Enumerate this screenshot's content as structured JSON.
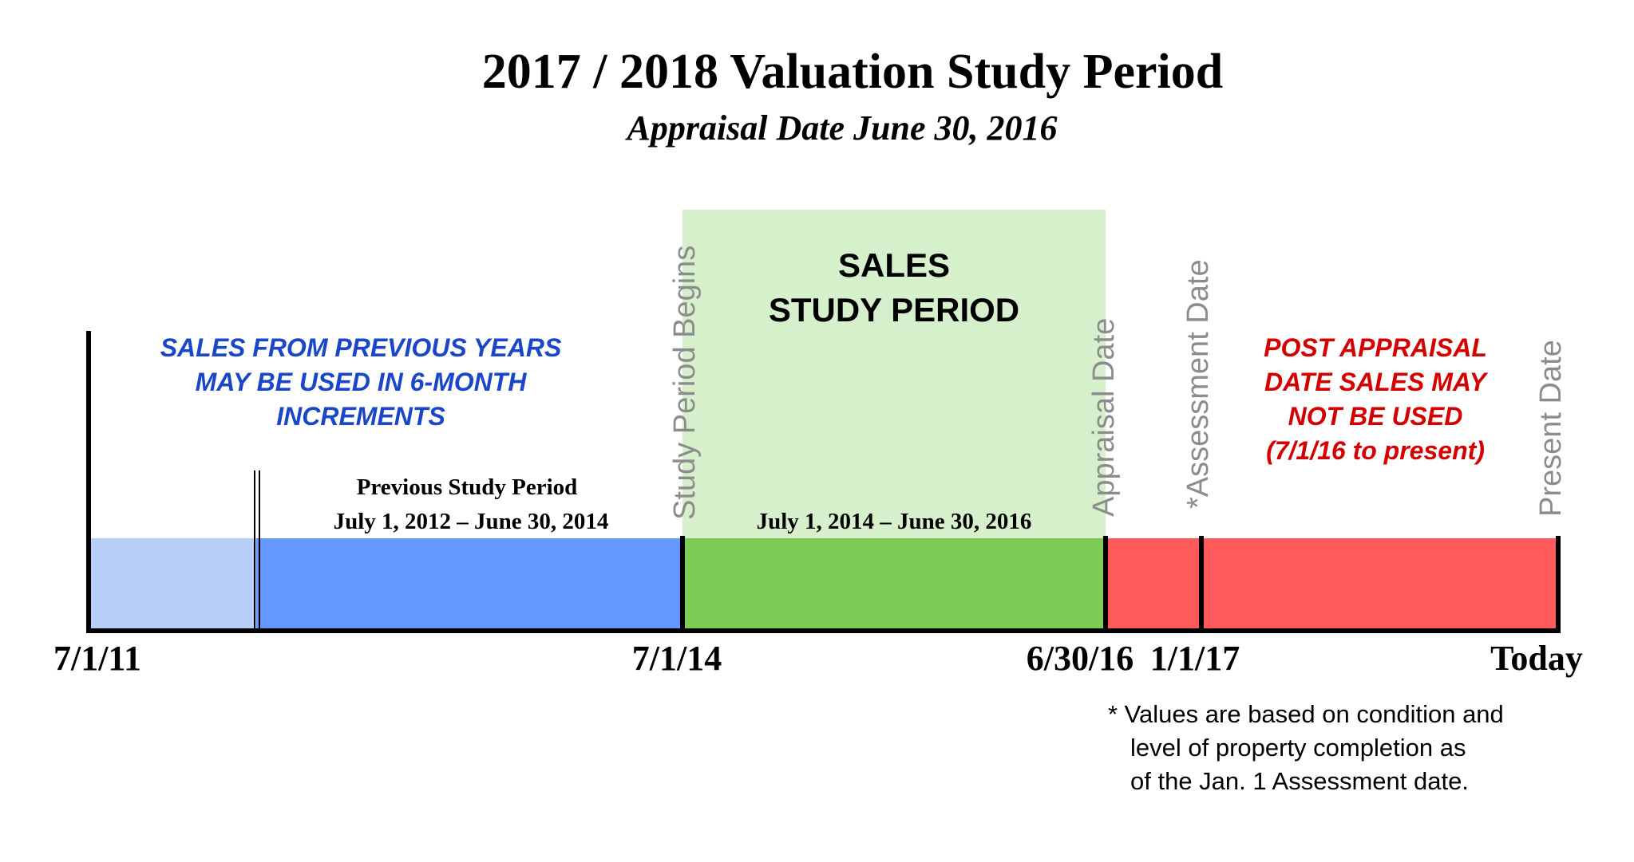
{
  "title": "2017 / 2018 Valuation Study Period",
  "subtitle": "Appraisal Date June 30, 2016",
  "sales_box": {
    "line1": "SALES",
    "line2": "STUDY PERIOD",
    "dates": "July 1, 2014 – June 30, 2016"
  },
  "previous_years_note": {
    "line1": "SALES FROM PREVIOUS YEARS",
    "line2": "MAY BE USED IN 6-MONTH",
    "line3": "INCREMENTS"
  },
  "previous_study": {
    "title": "Previous Study Period",
    "dates": "July 1, 2012 – June 30, 2014"
  },
  "post_appraisal_note": {
    "line1": "POST APPRAISAL",
    "line2": "DATE SALES MAY",
    "line3": "NOT BE USED",
    "line4": "(7/1/16 to present)"
  },
  "vertical_labels": {
    "study_begins": "Study Period Begins",
    "appraisal_date": "Appraisal Date",
    "assessment_date": "*Assessment Date",
    "present_date": "Present Date"
  },
  "tick_labels": {
    "start": "7/1/11",
    "study_begin": "7/1/14",
    "appraisal": "6/30/16",
    "assessment": "1/1/17",
    "today": "Today"
  },
  "footnote": {
    "line1": "* Values are based on condition and",
    "line2": "level of property completion as",
    "line3": "of the Jan. 1 Assessment date."
  },
  "colors": {
    "light_blue": "#b8cffa",
    "blue": "#6699ff",
    "green": "#7ecb56",
    "light_green": "#d7f0cc",
    "red": "#ff5a5a",
    "blue_text": "#1a46c8",
    "red_text": "#d40000",
    "gray_text": "#8c8c8c"
  }
}
